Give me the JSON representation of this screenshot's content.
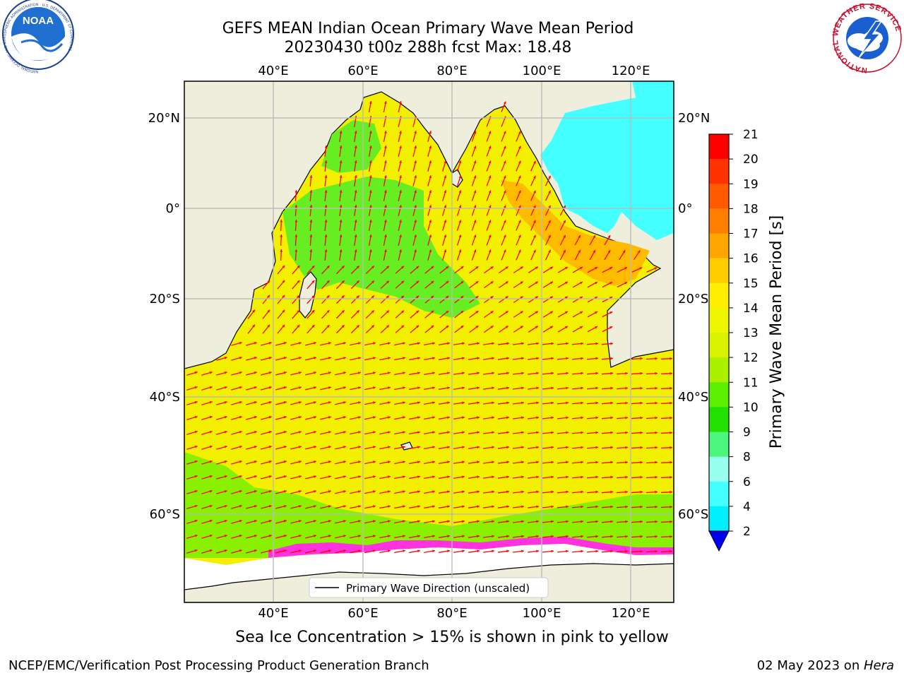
{
  "header": {
    "title_line1": "GEFS MEAN Indian Ocean Primary Wave Mean Period",
    "title_line2": "20230430 t00z 288h fcst   Max: 18.48"
  },
  "logos": {
    "noaa_text": "NOAA",
    "noaa_ring_text": "NATIONAL OCEANIC AND ATMOSPHERIC ADMINISTRATION · U.S. DEPARTMENT OF COMMERCE",
    "nws_ring_text": "NATIONAL WEATHER SERVICE"
  },
  "map": {
    "lon_ticks_top": [
      "40°E",
      "60°E",
      "80°E",
      "100°E",
      "120°E"
    ],
    "lon_ticks_bottom": [
      "40°E",
      "60°E",
      "80°E",
      "100°E",
      "120°E"
    ],
    "lat_ticks_left": [
      "20°N",
      "0°",
      "20°S",
      "40°S",
      "60°S"
    ],
    "lat_ticks_right": [
      "20°N",
      "0°",
      "20°S",
      "40°S",
      "60°S"
    ],
    "legend_label": "Primary Wave Direction (unscaled)",
    "colors": {
      "land": "#efeedd",
      "ocean_main": "#f2ef00",
      "ice": "#ffffff",
      "ice_edge": "#ff33dd",
      "arrow": "#ff0000"
    }
  },
  "colorbar": {
    "label": "Primary Wave Mean Period [s]",
    "tick_labels": [
      "21",
      "20",
      "19",
      "18",
      "17",
      "16",
      "15",
      "14",
      "13",
      "12",
      "11",
      "10",
      "9",
      "8",
      "6",
      "4",
      "2"
    ],
    "colors": [
      "#ff0000",
      "#ff3300",
      "#ff5a00",
      "#ff8000",
      "#ffa500",
      "#ffcc00",
      "#ffee00",
      "#eef500",
      "#d8f200",
      "#aaf000",
      "#5cef00",
      "#22e000",
      "#4cf57c",
      "#99ffee",
      "#44ffff",
      "#00eeff",
      "#0088ff"
    ],
    "extend_color": "#0000ee"
  },
  "notes": {
    "sea_ice": "Sea Ice Concentration > 15% is shown in pink to yellow"
  },
  "footer": {
    "left": "NCEP/EMC/Verification Post Processing Product Generation Branch",
    "right_date": "02 May 2023 on ",
    "right_host": "Hera"
  }
}
